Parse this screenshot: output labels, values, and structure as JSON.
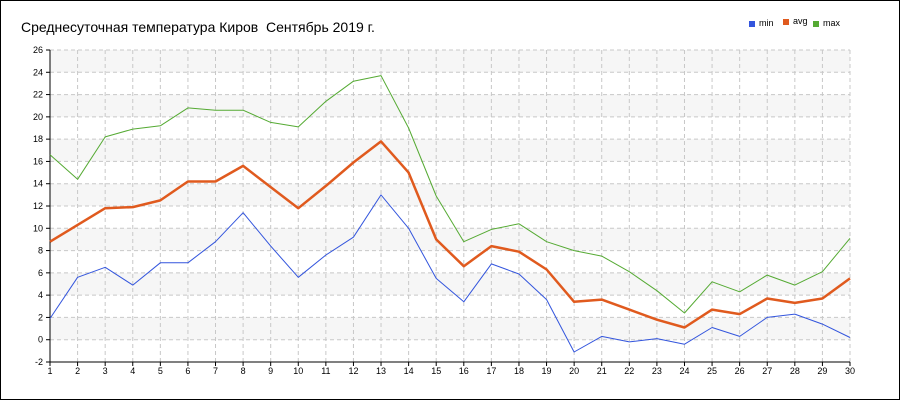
{
  "chart_data": {
    "type": "line",
    "title": "Среднесуточная температура Киров  Сентябрь 2019 г.",
    "x": [
      1,
      2,
      3,
      4,
      5,
      6,
      7,
      8,
      9,
      10,
      11,
      12,
      13,
      14,
      15,
      16,
      17,
      18,
      19,
      20,
      21,
      22,
      23,
      24,
      25,
      26,
      27,
      28,
      29,
      30
    ],
    "ylim": [
      -2,
      26
    ],
    "yticks": [
      -2,
      0,
      2,
      4,
      6,
      8,
      10,
      12,
      14,
      16,
      18,
      20,
      22,
      24,
      26
    ],
    "grid": true,
    "legend_position": "top-right",
    "series": [
      {
        "name": "min",
        "color": "#3355dd",
        "values": [
          1.9,
          5.6,
          6.5,
          4.9,
          6.9,
          6.9,
          8.8,
          11.4,
          8.4,
          5.6,
          7.6,
          9.2,
          13.0,
          10.0,
          5.5,
          3.4,
          6.8,
          5.9,
          3.6,
          -1.1,
          0.3,
          -0.2,
          0.1,
          -0.4,
          1.1,
          0.3,
          2.0,
          2.3,
          1.4,
          0.2
        ]
      },
      {
        "name": "avg",
        "color": "#e05a1e",
        "values": [
          8.8,
          10.3,
          11.8,
          11.9,
          12.5,
          14.2,
          14.2,
          15.6,
          13.7,
          11.8,
          13.8,
          15.9,
          17.8,
          15.0,
          9.0,
          6.6,
          8.4,
          7.9,
          6.3,
          3.4,
          3.6,
          2.7,
          1.8,
          1.1,
          2.7,
          2.3,
          3.7,
          3.3,
          3.7,
          5.5
        ]
      },
      {
        "name": "max",
        "color": "#55aa33",
        "values": [
          16.6,
          14.4,
          18.2,
          18.9,
          19.2,
          20.8,
          20.6,
          20.6,
          19.5,
          19.1,
          21.4,
          23.2,
          23.7,
          19.0,
          12.9,
          8.8,
          9.9,
          10.4,
          8.8,
          8.0,
          7.5,
          6.1,
          4.4,
          2.4,
          5.2,
          4.3,
          5.8,
          4.9,
          6.1,
          9.1
        ]
      }
    ]
  }
}
